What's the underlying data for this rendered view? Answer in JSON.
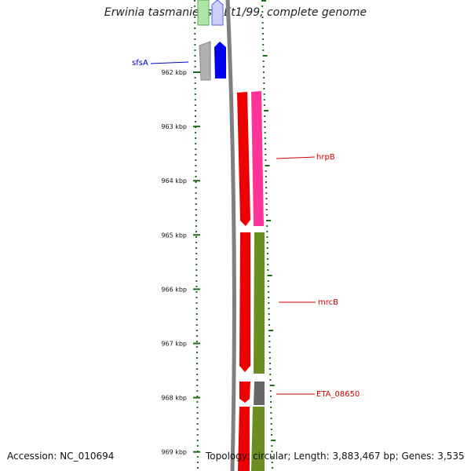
{
  "title": "Erwinia tasmaniensis Et1/99, complete genome",
  "footer": {
    "accession": "Accession: NC_010694",
    "stats": "Topology: circular; Length: 3,883,467 bp; Genes: 3,535"
  },
  "ruler": {
    "unit": "kbp",
    "ticks": [
      {
        "label": "962 kbp",
        "value": 962
      },
      {
        "label": "963 kbp",
        "value": 963
      },
      {
        "label": "964 kbp",
        "value": 964
      },
      {
        "label": "965 kbp",
        "value": 965
      },
      {
        "label": "966 kbp",
        "value": 966
      },
      {
        "label": "967 kbp",
        "value": 967
      },
      {
        "label": "968 kbp",
        "value": 968
      },
      {
        "label": "969 kbp",
        "value": 969
      }
    ]
  },
  "gene_labels": [
    {
      "name": "sfsA",
      "color": "#0000cc"
    },
    {
      "name": "hrpB",
      "color": "#cc0000"
    },
    {
      "name": "mrcB",
      "color": "#cc0000"
    },
    {
      "name": "ETA_08650",
      "color": "#cc0000"
    }
  ],
  "colors": {
    "tick": "#1a6b1a",
    "backbone": "#808080",
    "cds_red": "#ee0000",
    "cds_pink": "#ff3399",
    "cds_olive": "#6b8e23",
    "cds_gray": "#666666",
    "cds_blue": "#0000ee",
    "cds_light_gray": "#aaaaaa"
  }
}
